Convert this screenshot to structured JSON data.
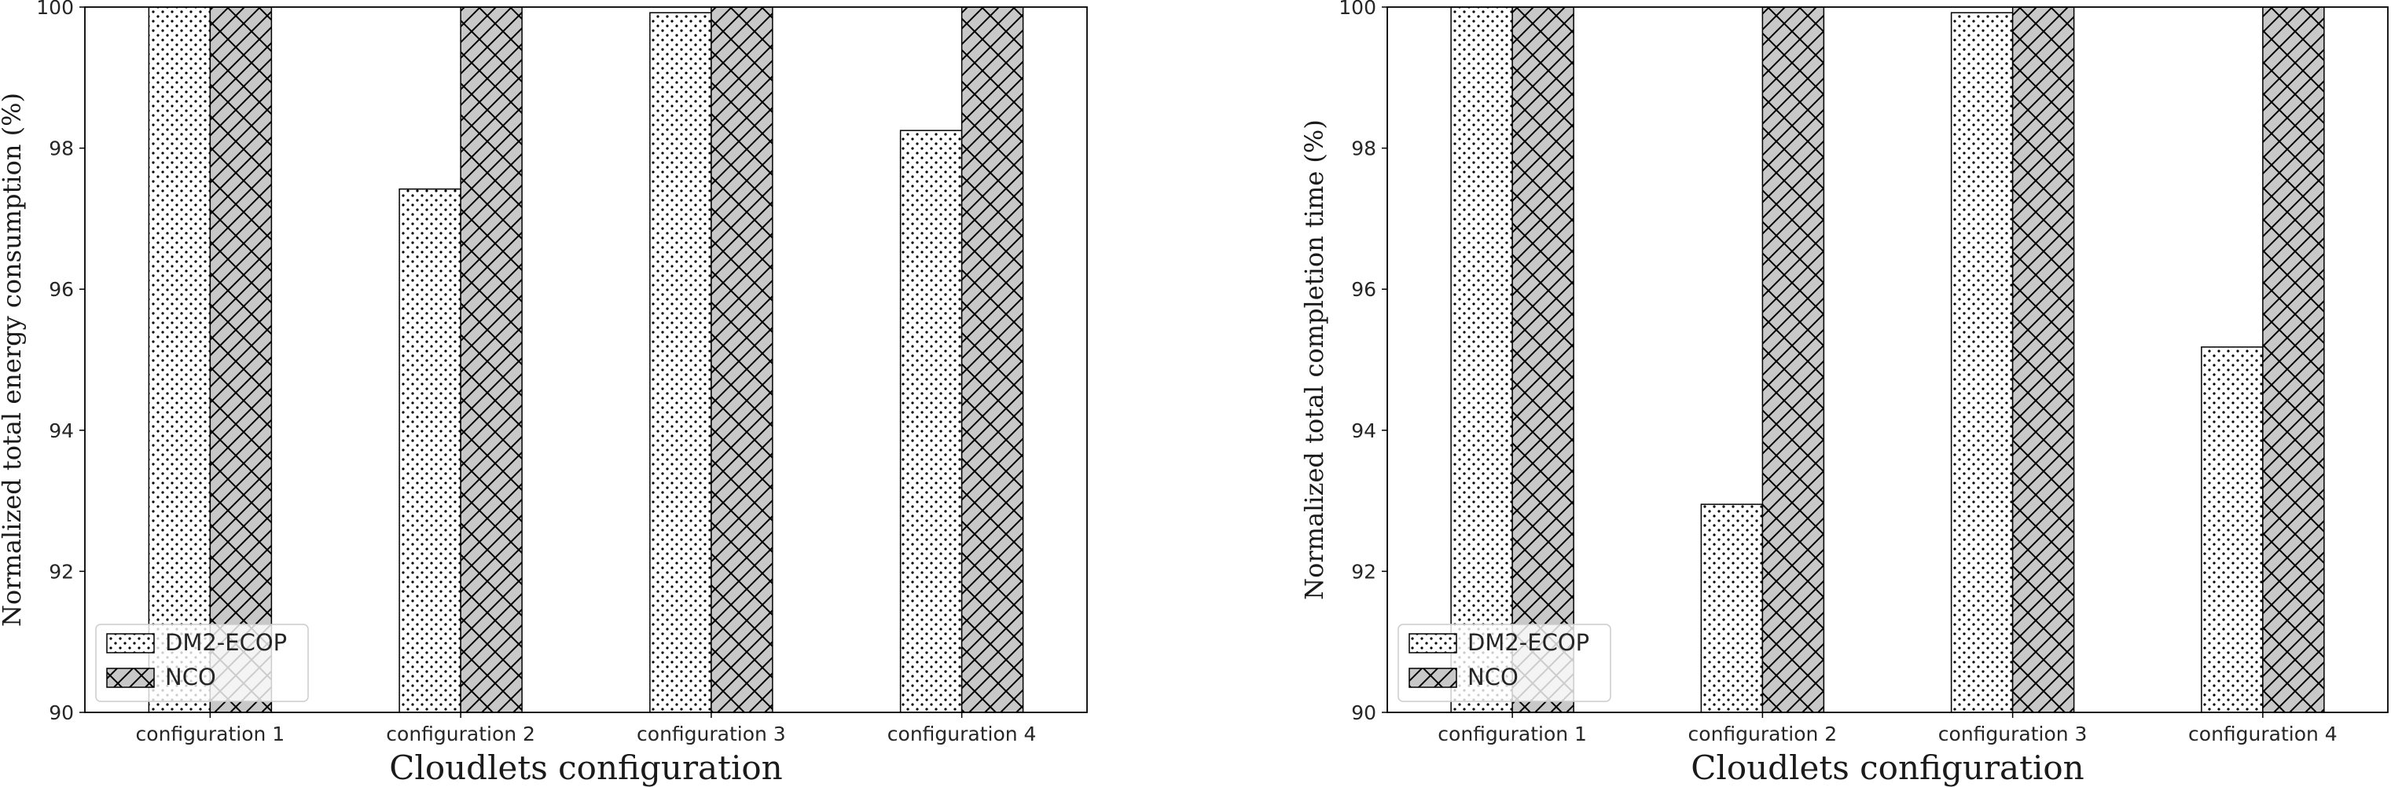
{
  "chart_data": [
    {
      "type": "bar",
      "categories": [
        "configuration 1",
        "configuration 2",
        "configuration 3",
        "configuration 4"
      ],
      "series": [
        {
          "name": "DM2-ECOP",
          "values": [
            100,
            97.42,
            99.92,
            98.25
          ],
          "color": "#ffffff",
          "hatch": "dots"
        },
        {
          "name": "NCO",
          "values": [
            100,
            100,
            100,
            100
          ],
          "color": "#c8c8c8",
          "hatch": "crosshatch"
        }
      ],
      "xlabel": "Cloudlets configuration",
      "ylabel": "Normalized total energy consumption (%)",
      "ylim": [
        90,
        100
      ],
      "yticks": [
        90,
        92,
        94,
        96,
        98,
        100
      ],
      "grid": false,
      "legend_position": "lower-left"
    },
    {
      "type": "bar",
      "categories": [
        "configuration 1",
        "configuration 2",
        "configuration 3",
        "configuration 4"
      ],
      "series": [
        {
          "name": "DM2-ECOP",
          "values": [
            100,
            92.95,
            99.92,
            95.18
          ],
          "color": "#ffffff",
          "hatch": "dots"
        },
        {
          "name": "NCO",
          "values": [
            100,
            100,
            100,
            100
          ],
          "color": "#c8c8c8",
          "hatch": "crosshatch"
        }
      ],
      "xlabel": "Cloudlets configuration",
      "ylabel": "Normalized total completion time (%)",
      "ylim": [
        90,
        100
      ],
      "yticks": [
        90,
        92,
        94,
        96,
        98,
        100
      ],
      "grid": false,
      "legend_position": "lower-left"
    }
  ]
}
